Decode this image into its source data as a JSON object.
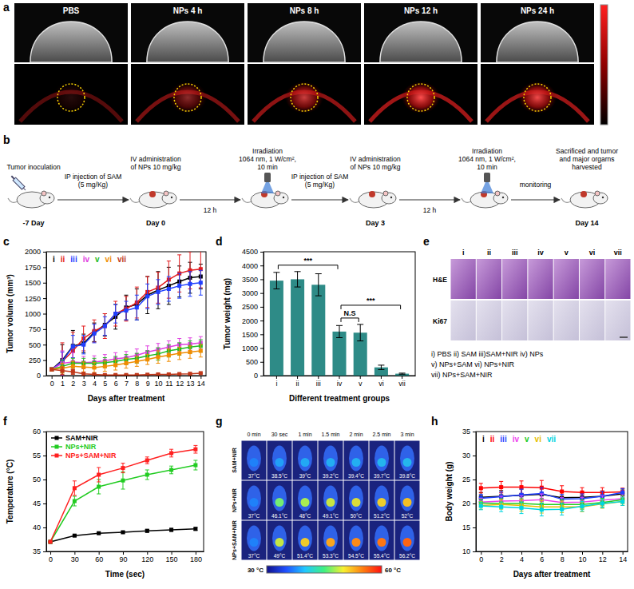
{
  "panels": {
    "a": {
      "panel_label": "a",
      "labels": [
        "PBS",
        "NPs 4 h",
        "NPs 8 h",
        "NPs 12 h",
        "NPs 24 h"
      ]
    },
    "b": {
      "panel_label": "b",
      "steps": [
        {
          "top": [
            "Tumor inoculation"
          ],
          "bottom": "-7 Day"
        },
        {
          "top": [
            "IV administration",
            "of NPs 10 mg/kg"
          ],
          "bottom": "Day 0"
        },
        {
          "top": [
            "Irradiation",
            "1064 nm, 1 W/cm²,",
            "10 min"
          ]
        },
        {
          "top": [
            "IV administration",
            "of NPs 10 mg/kg"
          ],
          "bottom": "Day 3"
        },
        {
          "top": [
            "Irradiation",
            "1064 nm, 1 W/cm²,",
            "10 min"
          ]
        },
        {
          "top": [
            "Sacrificed and tumor",
            "and major orgarns",
            "harvested"
          ],
          "bottom": "Day 14"
        }
      ],
      "arrows": [
        {
          "top": [
            "IP injection of SAM",
            "(5 mg/Kg)"
          ]
        },
        {
          "bottom": [
            "12 h"
          ]
        },
        {
          "top": [
            "IP injection of SAM",
            "(5 mg/Kg)"
          ]
        },
        {
          "bottom": [
            "12 h"
          ]
        },
        {
          "top": [
            "monitoring"
          ]
        }
      ]
    },
    "e": {
      "panel_label": "e",
      "columns": [
        "i",
        "ii",
        "iii",
        "iv",
        "v",
        "vi",
        "vii"
      ],
      "rows": [
        "H&E",
        "Ki67"
      ],
      "key": [
        "i) PBS ii) SAM iii)SAM+NIR iv) NPs",
        "v) NPs+SAM vi) NPs+NIR",
        "vii) NPs+SAM+NIR"
      ]
    },
    "g": {
      "panel_label": "g",
      "columns": [
        "0 min",
        "30 sec",
        "1 min",
        "1.5 min",
        "2 min",
        "2.5 min",
        "3 min"
      ],
      "rows": [
        {
          "name": "SAM+NIR",
          "cells": [
            {
              "value": 37,
              "label": "37°C"
            },
            {
              "value": 38.5,
              "label": "38.5°C"
            },
            {
              "value": 39,
              "label": "39°C"
            },
            {
              "value": 39.2,
              "label": "39.2°C"
            },
            {
              "value": 39.4,
              "label": "39.4°C"
            },
            {
              "value": 39.7,
              "label": "39.7°C"
            },
            {
              "value": 39.8,
              "label": "39.8°C"
            }
          ]
        },
        {
          "name": "NPs+NIR",
          "cells": [
            {
              "value": 37,
              "label": "37°C"
            },
            {
              "value": 46.1,
              "label": "46.1°C"
            },
            {
              "value": 48,
              "label": "48°C"
            },
            {
              "value": 49.1,
              "label": "49.1°C"
            },
            {
              "value": 50,
              "label": "50°C"
            },
            {
              "value": 51.2,
              "label": "51.2°C"
            },
            {
              "value": 52,
              "label": "52°C"
            }
          ]
        },
        {
          "name": "NPs+SAM+NIR",
          "cells": [
            {
              "value": 37,
              "label": "37°C"
            },
            {
              "value": 49,
              "label": "49°C"
            },
            {
              "value": 51.4,
              "label": "51.4°C"
            },
            {
              "value": 53.3,
              "label": "53.3°C"
            },
            {
              "value": 54.5,
              "label": "54.5°C"
            },
            {
              "value": 55.4,
              "label": "55.4°C"
            },
            {
              "value": 56.2,
              "label": "56.2°C"
            }
          ]
        }
      ],
      "colorbar": {
        "range": [
          30,
          60
        ],
        "labels": [
          "30 °C",
          "60 °C"
        ]
      }
    }
  },
  "chart_data": [
    {
      "panel_label": "c",
      "type": "line",
      "x_label": "Days after treatment",
      "y_label": "Tumor volume (mm³)",
      "x": [
        0,
        1,
        2,
        3,
        4,
        5,
        6,
        7,
        8,
        9,
        10,
        11,
        12,
        13,
        14
      ],
      "xlim": [
        -0.5,
        14.5
      ],
      "xticks": [
        0,
        1,
        2,
        3,
        4,
        5,
        6,
        7,
        8,
        9,
        10,
        11,
        12,
        13,
        14
      ],
      "ylim": [
        0,
        2000
      ],
      "yticks": [
        0,
        250,
        500,
        750,
        1000,
        1250,
        1500,
        1750,
        2000
      ],
      "grid": false,
      "legend": "top",
      "marker": "square",
      "series": [
        {
          "name": "i",
          "color": "#000000",
          "values": [
            100,
            250,
            480,
            520,
            700,
            820,
            950,
            1100,
            1150,
            1300,
            1380,
            1450,
            1520,
            1580,
            1600
          ],
          "errors": [
            20,
            250,
            250,
            150,
            150,
            180,
            200,
            200,
            250,
            300,
            300,
            300,
            250,
            250,
            200
          ]
        },
        {
          "name": "ii",
          "color": "#e31a1c",
          "values": [
            100,
            230,
            400,
            600,
            720,
            800,
            1000,
            1080,
            1180,
            1350,
            1420,
            1550,
            1650,
            1700,
            1720
          ],
          "errors": [
            20,
            300,
            300,
            200,
            180,
            200,
            200,
            200,
            250,
            250,
            250,
            300,
            300,
            300,
            300
          ]
        },
        {
          "name": "iii",
          "color": "#1f3fff",
          "values": [
            100,
            230,
            470,
            500,
            680,
            800,
            1000,
            1050,
            1100,
            1280,
            1350,
            1400,
            1450,
            1480,
            1500
          ],
          "errors": [
            20,
            150,
            180,
            150,
            150,
            150,
            150,
            150,
            200,
            200,
            200,
            200,
            200,
            200,
            200
          ]
        },
        {
          "name": "iv",
          "color": "#e040e0",
          "values": [
            100,
            200,
            220,
            210,
            220,
            240,
            270,
            290,
            330,
            380,
            420,
            460,
            500,
            510,
            530
          ],
          "errors": [
            20,
            200,
            150,
            100,
            100,
            100,
            100,
            100,
            100,
            100,
            100,
            100,
            100,
            100,
            100
          ]
        },
        {
          "name": "v",
          "color": "#22bb22",
          "values": [
            100,
            150,
            200,
            200,
            200,
            210,
            230,
            260,
            280,
            320,
            350,
            400,
            430,
            460,
            480
          ],
          "errors": [
            20,
            100,
            80,
            80,
            80,
            80,
            80,
            80,
            80,
            80,
            100,
            100,
            100,
            100,
            100
          ]
        },
        {
          "name": "vi",
          "color": "#f08c00",
          "values": [
            100,
            120,
            150,
            140,
            130,
            150,
            170,
            200,
            230,
            260,
            300,
            330,
            360,
            380,
            400
          ],
          "errors": [
            20,
            80,
            80,
            80,
            80,
            80,
            80,
            80,
            80,
            80,
            100,
            100,
            100,
            100,
            100
          ]
        },
        {
          "name": "vii",
          "color": "#c0391b",
          "values": [
            100,
            80,
            60,
            30,
            20,
            10,
            10,
            10,
            10,
            15,
            20,
            20,
            25,
            30,
            40
          ],
          "errors": [
            20,
            60,
            40,
            20,
            10,
            10,
            10,
            10,
            10,
            10,
            10,
            10,
            10,
            10,
            10
          ]
        }
      ]
    },
    {
      "panel_label": "d",
      "type": "bar",
      "x_label": "Different treatment groups",
      "y_label": "Tumor weight (mg)",
      "categories": [
        "i",
        "ii",
        "iii",
        "iv",
        "v",
        "vi",
        "vii"
      ],
      "values": [
        3450,
        3500,
        3300,
        1600,
        1560,
        300,
        70
      ],
      "errors": [
        300,
        280,
        400,
        220,
        300,
        80,
        20
      ],
      "color": "#2e8b87",
      "grid": false,
      "ylim": [
        0,
        4500
      ],
      "yticks": [
        0,
        500,
        1000,
        1500,
        2000,
        2500,
        3000,
        3500,
        4000,
        4500
      ],
      "annotations": [
        {
          "from": 0,
          "to": 3,
          "text": "***"
        },
        {
          "from": 3,
          "to": 4,
          "text": "N.S"
        },
        {
          "from": 3,
          "to": 6,
          "text": "***"
        }
      ]
    },
    {
      "panel_label": "f",
      "type": "line",
      "x_label": "Time (sec)",
      "y_label": "Temperature (°C)",
      "x": [
        0,
        30,
        60,
        90,
        120,
        150,
        180
      ],
      "xlim": [
        -5,
        190
      ],
      "xticks": [
        0,
        30,
        60,
        90,
        120,
        150,
        180
      ],
      "ylim": [
        35,
        60
      ],
      "yticks": [
        35,
        40,
        45,
        50,
        55,
        60
      ],
      "grid": false,
      "legend": "upper-left",
      "marker": "square",
      "series": [
        {
          "name": "SAM+NIR",
          "color": "#000000",
          "values": [
            37,
            38.3,
            38.8,
            39.0,
            39.3,
            39.5,
            39.7
          ],
          "errors": [
            0,
            0.2,
            0.2,
            0.2,
            0.3,
            0.3,
            0.3
          ]
        },
        {
          "name": "NPs+NIR",
          "color": "#22cc22",
          "values": [
            37,
            45.5,
            48.5,
            49.8,
            51,
            52,
            53
          ],
          "errors": [
            0,
            1,
            1.5,
            1.8,
            1,
            0.8,
            1
          ]
        },
        {
          "name": "NPs+SAM+NIR",
          "color": "#ff2020",
          "values": [
            37,
            48.2,
            51,
            52.4,
            54,
            55.5,
            56.3
          ],
          "errors": [
            0,
            1.5,
            1.5,
            1,
            0.7,
            0.8,
            0.8
          ]
        }
      ]
    },
    {
      "panel_label": "h",
      "type": "line",
      "x_label": "Days after treatment",
      "y_label": "Body weight (g)",
      "x": [
        0,
        2,
        4,
        6,
        8,
        10,
        12,
        14
      ],
      "xlim": [
        -0.5,
        14.5
      ],
      "xticks": [
        0,
        2,
        4,
        6,
        8,
        10,
        12,
        14
      ],
      "ylim": [
        10,
        35
      ],
      "yticks": [
        10,
        15,
        20,
        25,
        30,
        35
      ],
      "grid": false,
      "legend": "top",
      "marker": "square",
      "series": [
        {
          "name": "i",
          "color": "#000000",
          "values": [
            21.3,
            21.5,
            21.7,
            21.9,
            21.2,
            21.3,
            21.5,
            22.0
          ],
          "errors": [
            1.0,
            1.2,
            1.3,
            1.4,
            1.2,
            1.0,
            1.1,
            1.0
          ]
        },
        {
          "name": "ii",
          "color": "#ff0000",
          "values": [
            23.2,
            23.4,
            23.4,
            23.3,
            22.5,
            22.3,
            22.3,
            22.4
          ],
          "errors": [
            1.0,
            1.2,
            1.3,
            1.5,
            1.2,
            1.0,
            1.0,
            0.8
          ]
        },
        {
          "name": "iii",
          "color": "#1f3fff",
          "values": [
            21.1,
            21.4,
            21.8,
            22.1,
            20.9,
            21.0,
            21.5,
            22.3
          ],
          "errors": [
            0.8,
            1.0,
            1.2,
            1.2,
            1.0,
            1.0,
            1.0,
            0.8
          ]
        },
        {
          "name": "iv",
          "color": "#ee44ee",
          "values": [
            20.3,
            20.5,
            20.6,
            20.8,
            20.2,
            20.3,
            20.7,
            21.0
          ],
          "errors": [
            0.8,
            1.0,
            1.0,
            1.2,
            1.0,
            1.0,
            0.9,
            0.8
          ]
        },
        {
          "name": "v",
          "color": "#22cc22",
          "values": [
            20.1,
            20.0,
            20.0,
            19.8,
            19.8,
            19.8,
            20.2,
            20.8
          ],
          "errors": [
            0.8,
            1.0,
            1.0,
            1.2,
            1.0,
            1.0,
            0.9,
            0.8
          ]
        },
        {
          "name": "vi",
          "color": "#e6c000",
          "values": [
            19.6,
            19.8,
            19.6,
            19.3,
            19.3,
            19.3,
            19.9,
            20.4
          ],
          "errors": [
            0.8,
            1.0,
            1.2,
            1.3,
            1.2,
            1.0,
            0.9,
            0.8
          ]
        },
        {
          "name": "vii",
          "color": "#00d5e0",
          "values": [
            19.5,
            19.3,
            19.1,
            18.7,
            18.8,
            19.4,
            20.0,
            20.4
          ],
          "errors": [
            0.8,
            1.0,
            1.2,
            1.3,
            1.2,
            1.0,
            0.9,
            0.8
          ]
        }
      ]
    }
  ]
}
